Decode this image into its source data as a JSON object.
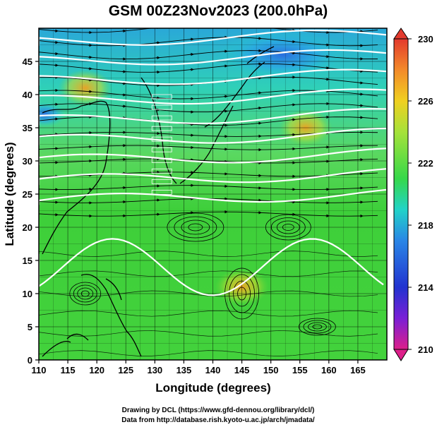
{
  "chart_data": {
    "type": "heatmap",
    "title": "GSM 00Z23Nov2023 (200.0hPa)",
    "xlabel": "Longitude (degrees)",
    "ylabel": "Latitude  (degrees)",
    "xlim": [
      110,
      170
    ],
    "ylim": [
      0,
      50
    ],
    "x_ticks": [
      "110",
      "115",
      "120",
      "125",
      "130",
      "135",
      "140",
      "145",
      "150",
      "155",
      "160",
      "165"
    ],
    "y_ticks": [
      "0",
      "5",
      "10",
      "15",
      "20",
      "25",
      "30",
      "35",
      "40",
      "45"
    ],
    "x_tick_values": [
      110,
      115,
      120,
      125,
      130,
      135,
      140,
      145,
      150,
      155,
      160,
      165
    ],
    "y_tick_values": [
      0,
      5,
      10,
      15,
      20,
      25,
      30,
      35,
      40,
      45
    ],
    "grid": true,
    "colorbar": {
      "labels": [
        "230",
        "226",
        "222",
        "218",
        "214",
        "210"
      ],
      "values": [
        230,
        226,
        222,
        218,
        214,
        210
      ],
      "range": [
        210,
        230
      ],
      "colors": [
        "#dd1f8a",
        "#7a1fd6",
        "#2233d0",
        "#2a86e6",
        "#22d3c8",
        "#36d84a",
        "#a6e23a",
        "#f0d020",
        "#f38a2a",
        "#e33a2e"
      ]
    },
    "features": {
      "warm_spots": [
        {
          "lon": 118,
          "lat": 41,
          "value": 226
        },
        {
          "lon": 156,
          "lat": 35,
          "value": 226
        },
        {
          "lon": 145,
          "lat": 11,
          "value": 226
        }
      ],
      "cool_spots": [
        {
          "lon": 152,
          "lat": 46,
          "value": 216
        },
        {
          "lon": 111,
          "lat": 37,
          "value": 216
        }
      ],
      "field_style": "temperature shading with streamlines and white jet-stream contours"
    }
  },
  "credits": {
    "line1": "Drawing by DCL (https://www.gfd-dennou.org/library/dcl/)",
    "line2": "Data from http://database.rish.kyoto-u.ac.jp/arch/jmadata/"
  }
}
